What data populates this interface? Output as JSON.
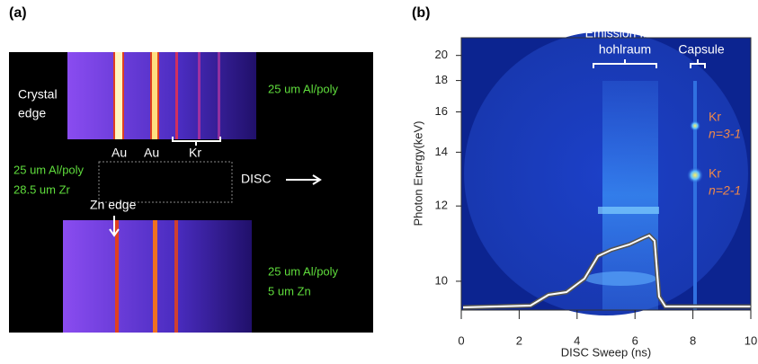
{
  "panel_a": {
    "label": "(a)",
    "crystal_edge": [
      "Crystal",
      "edge"
    ],
    "filter_top": "25 um Al/poly",
    "lines": [
      "Au",
      "Au",
      "Kr"
    ],
    "filter_middle": [
      "25 um Al/poly",
      "28.5 um Zr"
    ],
    "disc": "DISC",
    "zn_edge": "Zn edge",
    "filter_bottom": [
      "25 um Al/poly",
      "5 um Zn"
    ]
  },
  "panel_b": {
    "label": "(b)",
    "emission": [
      "Emission from",
      "hohlraum"
    ],
    "capsule": "Capsule",
    "kr_upper": [
      "Kr",
      "n=3-1"
    ],
    "kr_lower": [
      "Kr",
      "n=2-1"
    ],
    "xlabel": "DISC Sweep (ns)",
    "ylabel": "Photon Energy(keV)",
    "xlim": [
      0,
      10
    ],
    "xticks": [
      0,
      2,
      4,
      6,
      8,
      10
    ],
    "ylim": [
      9.4,
      21.7
    ],
    "yticks": [
      10,
      12,
      14,
      16,
      18,
      20
    ],
    "y_scale": "reciprocal"
  }
}
